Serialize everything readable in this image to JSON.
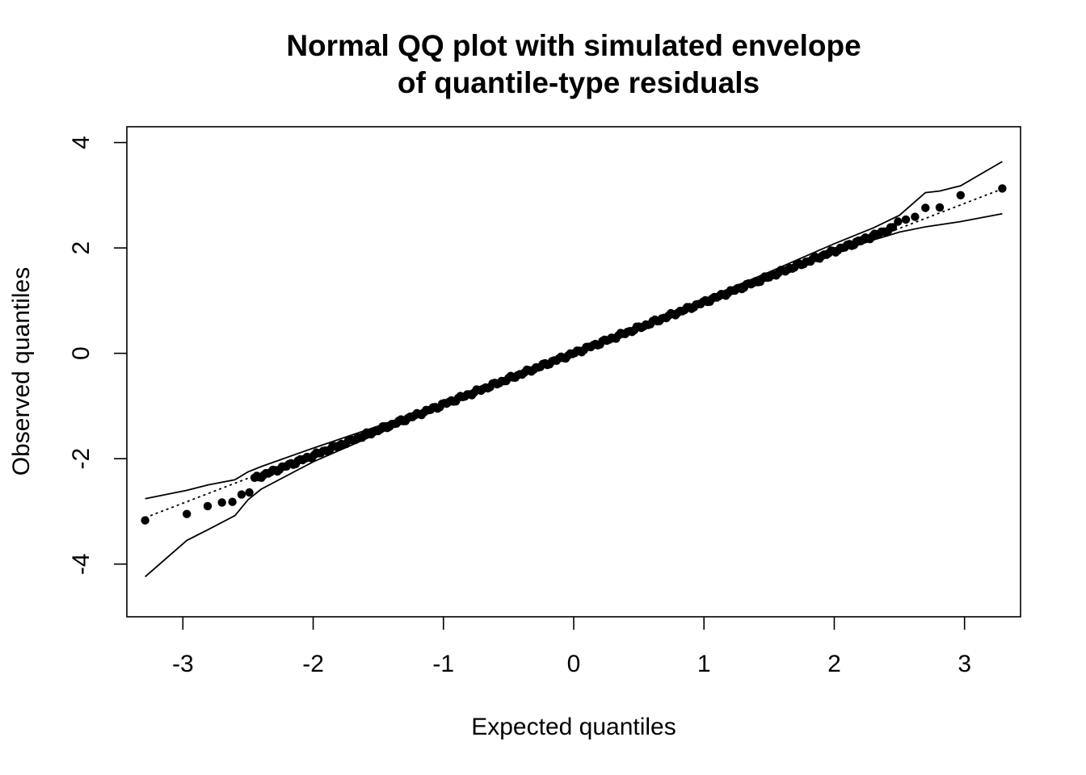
{
  "chart_data": {
    "type": "scatter",
    "title": "Normal QQ plot with simulated envelope\nof quantile-type residuals",
    "title_lines": [
      "Normal QQ plot with simulated envelope",
      "of quantile-type residuals"
    ],
    "xlabel": "Expected quantiles",
    "ylabel": "Observed quantiles",
    "xlim": [
      -3.43,
      3.43
    ],
    "ylim": [
      -5.0,
      4.3
    ],
    "xticks": [
      -3,
      -2,
      -1,
      0,
      1,
      2,
      3
    ],
    "xtick_labels": [
      "-3",
      "-2",
      "-1",
      "0",
      "1",
      "2",
      "3"
    ],
    "yticks": [
      -4,
      -2,
      0,
      2,
      4
    ],
    "ytick_labels": [
      "-4",
      "-2",
      "0",
      "2",
      "4"
    ],
    "grid": false,
    "legend": "none",
    "n_points": 1000,
    "points_tail_low": [
      {
        "x": -3.29,
        "y": -3.17
      },
      {
        "x": -2.97,
        "y": -3.05
      },
      {
        "x": -2.81,
        "y": -2.9
      },
      {
        "x": -2.7,
        "y": -2.83
      },
      {
        "x": -2.62,
        "y": -2.82
      },
      {
        "x": -2.55,
        "y": -2.68
      },
      {
        "x": -2.49,
        "y": -2.64
      }
    ],
    "points_tail_high": [
      {
        "x": 2.49,
        "y": 2.5
      },
      {
        "x": 2.55,
        "y": 2.54
      },
      {
        "x": 2.62,
        "y": 2.59
      },
      {
        "x": 2.7,
        "y": 2.76
      },
      {
        "x": 2.81,
        "y": 2.77
      },
      {
        "x": 2.97,
        "y": 3.0
      },
      {
        "x": 3.29,
        "y": 3.13
      }
    ],
    "points_central": {
      "from_x": -2.45,
      "to_x": 2.45,
      "slope": 0.97,
      "intercept": 0.0
    },
    "reference_line": {
      "style": "dotted",
      "x": [
        -3.29,
        3.29
      ],
      "y": [
        -3.12,
        3.12
      ]
    },
    "envelope_upper": [
      {
        "x": -3.29,
        "y": -2.76
      },
      {
        "x": -2.97,
        "y": -2.6
      },
      {
        "x": -2.81,
        "y": -2.5
      },
      {
        "x": -2.6,
        "y": -2.4
      },
      {
        "x": -2.5,
        "y": -2.25
      },
      {
        "x": -2.4,
        "y": -2.15
      },
      {
        "x": -2.0,
        "y": -1.8
      },
      {
        "x": -1.5,
        "y": -1.38
      },
      {
        "x": -1.0,
        "y": -0.94
      },
      {
        "x": -0.5,
        "y": -0.46
      },
      {
        "x": 0.0,
        "y": 0.02
      },
      {
        "x": 0.5,
        "y": 0.52
      },
      {
        "x": 1.0,
        "y": 1.03
      },
      {
        "x": 1.5,
        "y": 1.54
      },
      {
        "x": 2.0,
        "y": 2.08
      },
      {
        "x": 2.3,
        "y": 2.38
      },
      {
        "x": 2.5,
        "y": 2.62
      },
      {
        "x": 2.7,
        "y": 3.05
      },
      {
        "x": 2.81,
        "y": 3.08
      },
      {
        "x": 2.97,
        "y": 3.18
      },
      {
        "x": 3.29,
        "y": 3.64
      }
    ],
    "envelope_lower": [
      {
        "x": -3.29,
        "y": -4.24
      },
      {
        "x": -2.97,
        "y": -3.55
      },
      {
        "x": -2.81,
        "y": -3.35
      },
      {
        "x": -2.6,
        "y": -3.08
      },
      {
        "x": -2.5,
        "y": -2.78
      },
      {
        "x": -2.4,
        "y": -2.58
      },
      {
        "x": -2.0,
        "y": -2.06
      },
      {
        "x": -1.5,
        "y": -1.52
      },
      {
        "x": -1.0,
        "y": -1.02
      },
      {
        "x": -0.5,
        "y": -0.52
      },
      {
        "x": 0.0,
        "y": -0.02
      },
      {
        "x": 0.5,
        "y": 0.46
      },
      {
        "x": 1.0,
        "y": 0.94
      },
      {
        "x": 1.5,
        "y": 1.42
      },
      {
        "x": 2.0,
        "y": 1.9
      },
      {
        "x": 2.3,
        "y": 2.15
      },
      {
        "x": 2.5,
        "y": 2.3
      },
      {
        "x": 2.7,
        "y": 2.4
      },
      {
        "x": 2.81,
        "y": 2.44
      },
      {
        "x": 2.97,
        "y": 2.5
      },
      {
        "x": 3.29,
        "y": 2.65
      }
    ]
  }
}
